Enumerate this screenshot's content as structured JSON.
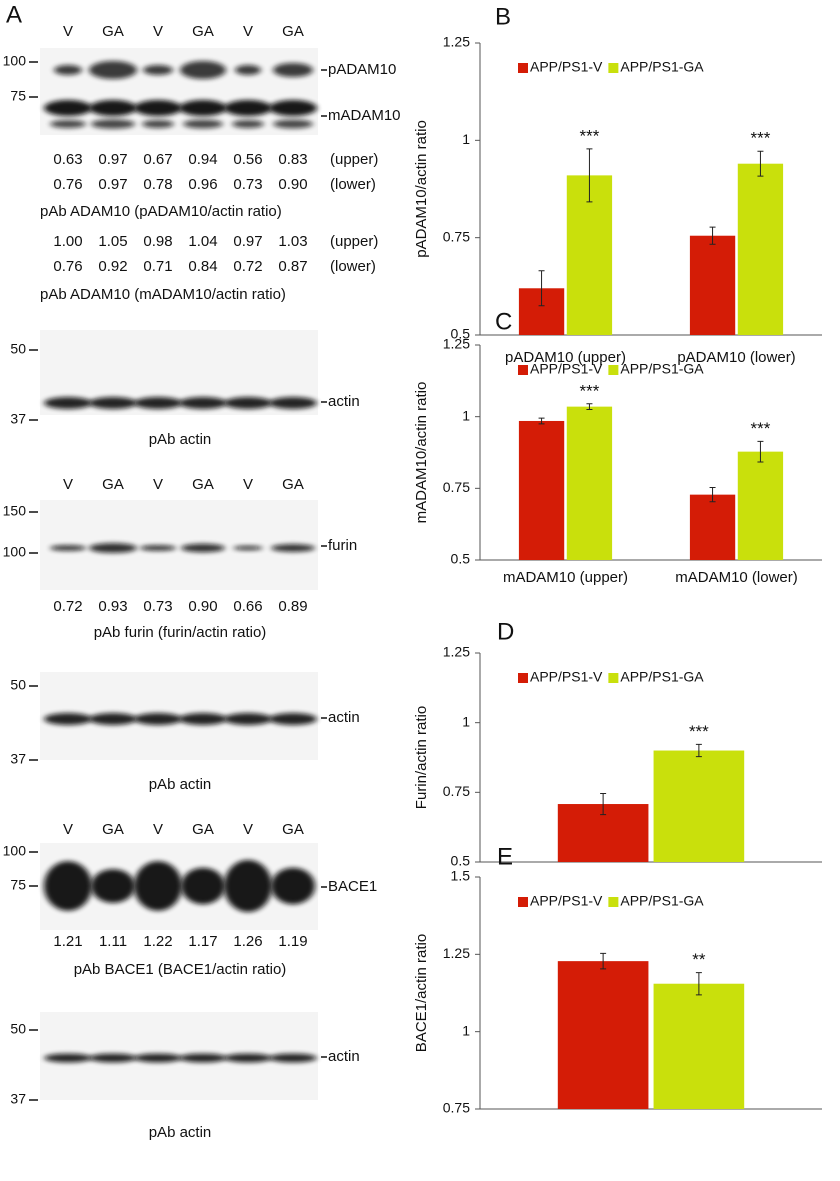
{
  "panel": "A",
  "blots": [
    {
      "lanes": [
        "V",
        "GA",
        "V",
        "GA",
        "V",
        "GA"
      ],
      "markers": [
        "100",
        "75"
      ],
      "proteins": [
        "pADAM10",
        "mADAM10"
      ],
      "ratio_blocks": [
        {
          "rows": [
            {
              "values": [
                "0.63",
                "0.97",
                "0.67",
                "0.94",
                "0.56",
                "0.83"
              ],
              "label": "(upper)"
            },
            {
              "values": [
                "0.76",
                "0.97",
                "0.78",
                "0.96",
                "0.73",
                "0.90"
              ],
              "label": "(lower)"
            }
          ],
          "caption": "pAb ADAM10 (pADAM10/actin ratio)"
        },
        {
          "rows": [
            {
              "values": [
                "1.00",
                "1.05",
                "0.98",
                "1.04",
                "0.97",
                "1.03"
              ],
              "label": "(upper)"
            },
            {
              "values": [
                "0.76",
                "0.92",
                "0.71",
                "0.84",
                "0.72",
                "0.87"
              ],
              "label": "(lower)"
            }
          ],
          "caption": "pAb ADAM10 (mADAM10/actin ratio)"
        }
      ]
    },
    {
      "markers": [
        "50",
        "37"
      ],
      "proteins": [
        "actin"
      ],
      "caption": "pAb actin"
    },
    {
      "lanes": [
        "V",
        "GA",
        "V",
        "GA",
        "V",
        "GA"
      ],
      "markers": [
        "150",
        "100"
      ],
      "proteins": [
        "furin"
      ],
      "ratio_blocks": [
        {
          "rows": [
            {
              "values": [
                "0.72",
                "0.93",
                "0.73",
                "0.90",
                "0.66",
                "0.89"
              ]
            }
          ],
          "caption": "pAb furin (furin/actin ratio)"
        }
      ]
    },
    {
      "markers": [
        "50",
        "37"
      ],
      "proteins": [
        "actin"
      ],
      "caption": "pAb actin"
    },
    {
      "lanes": [
        "V",
        "GA",
        "V",
        "GA",
        "V",
        "GA"
      ],
      "markers": [
        "100",
        "75"
      ],
      "proteins": [
        "BACE1"
      ],
      "ratio_blocks": [
        {
          "rows": [
            {
              "values": [
                "1.21",
                "1.11",
                "1.22",
                "1.17",
                "1.26",
                "1.19"
              ]
            }
          ],
          "caption": "pAb BACE1 (BACE1/actin ratio)"
        }
      ]
    },
    {
      "markers": [
        "50",
        "37"
      ],
      "proteins": [
        "actin"
      ],
      "caption": "pAb actin"
    }
  ],
  "chart_data": [
    {
      "type": "bar",
      "panel": "B",
      "ylabel": "pADAM10/actin ratio",
      "categories": [
        "pADAM10 (upper)",
        "pADAM10 (lower)"
      ],
      "series": [
        {
          "name": "APP/PS1-V",
          "color": "#d41c06",
          "values": [
            0.62,
            0.755
          ],
          "errors": [
            0.045,
            0.022
          ]
        },
        {
          "name": "APP/PS1-GA",
          "color": "#c9e00c",
          "values": [
            0.91,
            0.94
          ],
          "errors": [
            0.068,
            0.032
          ]
        }
      ],
      "annotations": [
        "***",
        "***"
      ],
      "ylim": [
        0.5,
        1.25
      ],
      "yticks": [
        0.5,
        0.75,
        1,
        1.25
      ],
      "legend": "top-left"
    },
    {
      "type": "bar",
      "panel": "C",
      "ylabel": "mADAM10/actin ratio",
      "categories": [
        "mADAM10 (upper)",
        "mADAM10 (lower)"
      ],
      "series": [
        {
          "name": "APP/PS1-V",
          "color": "#d41c06",
          "values": [
            0.985,
            0.728
          ],
          "errors": [
            0.01,
            0.025
          ]
        },
        {
          "name": "APP/PS1-GA",
          "color": "#c9e00c",
          "values": [
            1.035,
            0.878
          ],
          "errors": [
            0.01,
            0.036
          ]
        }
      ],
      "annotations": [
        "***",
        "***"
      ],
      "ylim": [
        0.5,
        1.25
      ],
      "yticks": [
        0.5,
        0.75,
        1,
        1.25
      ],
      "legend": "top-left"
    },
    {
      "type": "bar",
      "panel": "D",
      "ylabel": "Furin/actin ratio",
      "categories": [
        null
      ],
      "series": [
        {
          "name": "APP/PS1-V",
          "color": "#d41c06",
          "values": [
            0.708
          ],
          "errors": [
            0.038
          ]
        },
        {
          "name": "APP/PS1-GA",
          "color": "#c9e00c",
          "values": [
            0.9
          ],
          "errors": [
            0.022
          ]
        }
      ],
      "annotations": [
        "***"
      ],
      "ylim": [
        0.5,
        1.25
      ],
      "yticks": [
        0.5,
        0.75,
        1,
        1.25
      ],
      "legend": "top-left"
    },
    {
      "type": "bar",
      "panel": "E",
      "ylabel": "BACE1/actin ratio",
      "categories": [
        null
      ],
      "series": [
        {
          "name": "APP/PS1-V",
          "color": "#d41c06",
          "values": [
            1.228
          ],
          "errors": [
            0.025
          ]
        },
        {
          "name": "APP/PS1-GA",
          "color": "#c9e00c",
          "values": [
            1.155
          ],
          "errors": [
            0.036
          ]
        }
      ],
      "annotations": [
        "**"
      ],
      "ylim": [
        0.75,
        1.5
      ],
      "yticks": [
        0.75,
        1,
        1.25,
        1.5
      ],
      "legend": "top-left"
    }
  ]
}
